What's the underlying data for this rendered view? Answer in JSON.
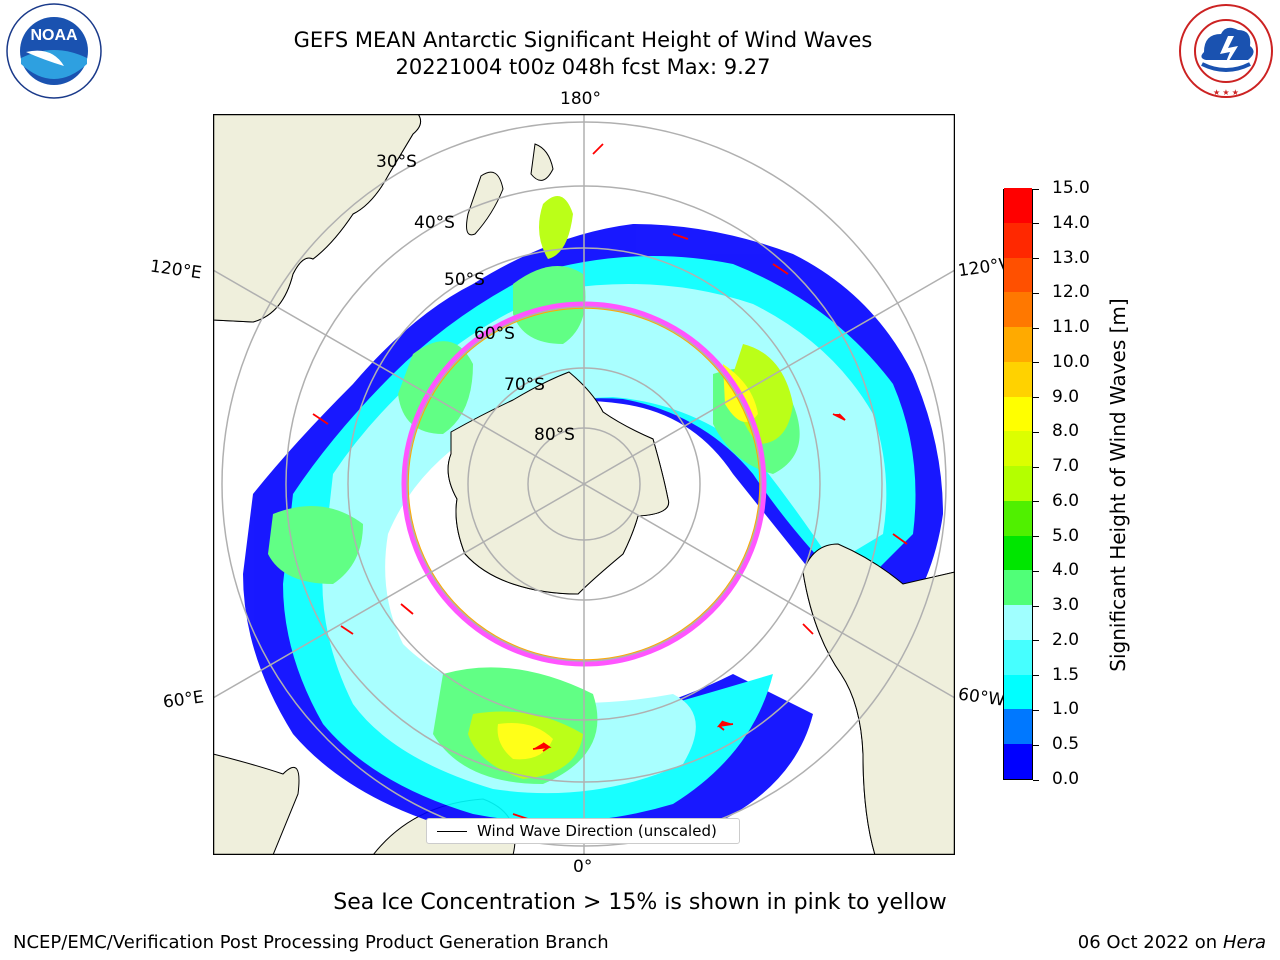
{
  "header": {
    "title_line1": "GEFS MEAN Antarctic Significant Height of Wind Waves",
    "title_line2": "20221004 t00z 048h fcst   Max: 9.27"
  },
  "logos": {
    "noaa_text": "NOAA",
    "nws_text": "NATIONAL WEATHER SERVICE"
  },
  "map": {
    "projection": "south-polar-stereographic",
    "longitude_labels": {
      "top": "180°",
      "bottom": "0°",
      "upper_left": "120°E",
      "upper_right": "120°W",
      "lower_left": "60°E",
      "lower_right": "60°W"
    },
    "latitude_labels": [
      "30°S",
      "40°S",
      "50°S",
      "60°S",
      "70°S",
      "80°S"
    ],
    "colors": {
      "land": "#efefdc",
      "ocean": "#ffffff",
      "graticule": "#b0b0b0",
      "arrow": "#ff0000",
      "sea_ice": "#ff55ff"
    },
    "legend": "Wind Wave Direction (unscaled)"
  },
  "colorbar": {
    "label": "Significant Height of Wind Waves [m]",
    "ticks": [
      "0.0",
      "0.5",
      "1.0",
      "1.5",
      "2.0",
      "3.0",
      "4.0",
      "5.0",
      "6.0",
      "7.0",
      "8.0",
      "9.0",
      "10.0",
      "11.0",
      "12.0",
      "13.0",
      "14.0",
      "15.0"
    ],
    "colors": [
      "#0000ff",
      "#0078ff",
      "#00ffff",
      "#46ffff",
      "#a0ffff",
      "#50ff78",
      "#00e600",
      "#50f000",
      "#b4ff00",
      "#dcff00",
      "#ffff00",
      "#ffd200",
      "#ffaa00",
      "#ff7800",
      "#ff5000",
      "#ff2800",
      "#ff0000"
    ]
  },
  "note": "Sea Ice Concentration > 15% is shown in pink to yellow",
  "footer": {
    "left": "NCEP/EMC/Verification Post Processing Product Generation Branch",
    "right_date": "06 Oct 2022 on ",
    "right_machine": "Hera"
  }
}
